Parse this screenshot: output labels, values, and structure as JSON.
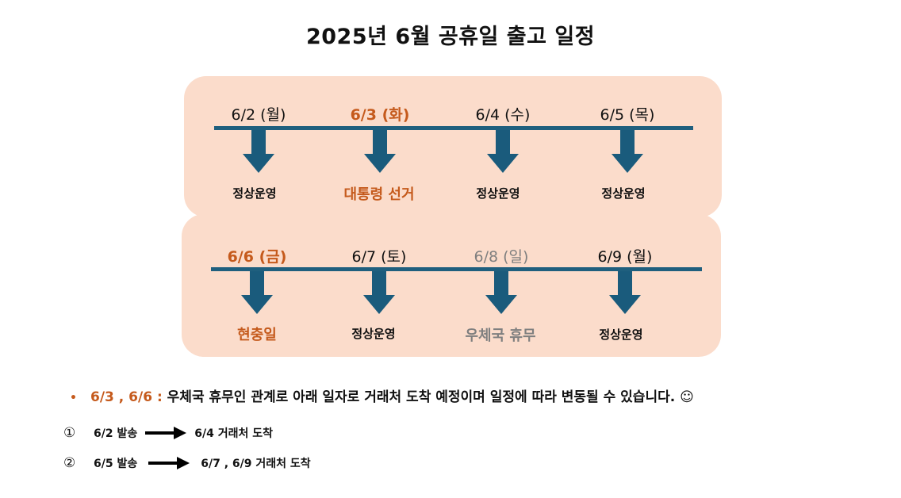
{
  "title": "2025년 6월 공휴일 출고 일정",
  "colors": {
    "panel_bg": "#fbdccb",
    "timeline": "#1f5f7e",
    "arrow": "#1a5b7c",
    "highlight": "#c55a1c",
    "muted": "#7f7f7f",
    "normal": "#111111"
  },
  "rows": [
    {
      "days": [
        {
          "date": "6/2 (월)",
          "status": "정상운영",
          "style": "normal"
        },
        {
          "date": "6/3 (화)",
          "status": "대통령 선거",
          "style": "highlight"
        },
        {
          "date": "6/4 (수)",
          "status": "정상운영",
          "style": "normal"
        },
        {
          "date": "6/5 (목)",
          "status": "정상운영",
          "style": "normal"
        }
      ]
    },
    {
      "days": [
        {
          "date": "6/6 (금)",
          "status": "현충일",
          "style": "highlight"
        },
        {
          "date": "6/7 (토)",
          "status": "정상운영",
          "style": "normal"
        },
        {
          "date": "6/8 (일)",
          "status": "우체국 휴무",
          "style": "muted"
        },
        {
          "date": "6/9 (월)",
          "status": "정상운영",
          "style": "normal"
        }
      ]
    }
  ],
  "notice": {
    "bullet": "•",
    "dates": "6/3 , 6/6 :",
    "text": "우체국 휴무인 관계로 아래 일자로 거래처 도착 예정이며 일정에 따라 변동될 수 있습니다. ☺"
  },
  "routes": [
    {
      "num": "①",
      "ship": "6/2 발송",
      "arrive": "6/4 거래처 도착"
    },
    {
      "num": "②",
      "ship": "6/5 발송",
      "arrive": "6/7 , 6/9 거래처 도착"
    }
  ]
}
